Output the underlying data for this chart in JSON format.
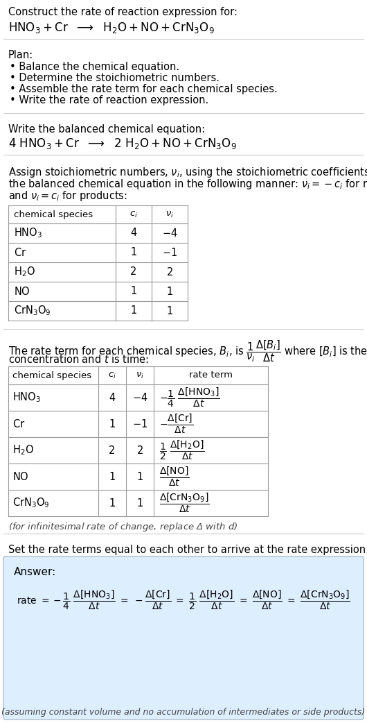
{
  "title_line1": "Construct the rate of reaction expression for:",
  "plan_header": "Plan:",
  "plan_items": [
    "• Balance the chemical equation.",
    "• Determine the stoichiometric numbers.",
    "• Assemble the rate term for each chemical species.",
    "• Write the rate of reaction expression."
  ],
  "balanced_header": "Write the balanced chemical equation:",
  "table1_headers_math": [
    "chemical species",
    "$c_i$",
    "$\\nu_i$"
  ],
  "table2_headers_math": [
    "chemical species",
    "$c_i$",
    "$\\nu_i$",
    "rate term"
  ],
  "species_math": [
    "$\\mathrm{HNO_3}$",
    "$\\mathrm{Cr}$",
    "$\\mathrm{H_2O}$",
    "$\\mathrm{NO}$",
    "$\\mathrm{CrN_3O_9}$"
  ],
  "ci_vals": [
    "4",
    "1",
    "2",
    "1",
    "1"
  ],
  "ni_vals": [
    "$-4$",
    "$-1$",
    "$2$",
    "$1$",
    "$1$"
  ],
  "infinitesimal_note": "(for infinitesimal rate of change, replace Δ with $d$)",
  "set_equal_text": "Set the rate terms equal to each other to arrive at the rate expression:",
  "answer_label": "Answer:",
  "answer_note": "(assuming constant volume and no accumulation of intermediates or side products)",
  "answer_bg_color": "#ddeeff",
  "answer_border_color": "#aabbcc",
  "bg_color": "#ffffff",
  "text_color": "#000000",
  "table_line_color": "#999999",
  "separator_color": "#cccccc"
}
